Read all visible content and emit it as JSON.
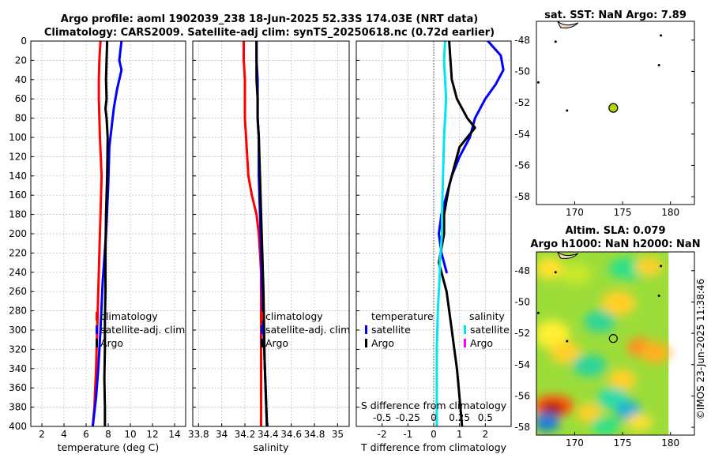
{
  "figure": {
    "title_line1": "Argo profile: aoml 1902039_238 18-Jun-2025 52.33S 174.03E (NRT data)",
    "title_line2": "Climatology: CARS2009. Satellite-adj clim: synTS_20250618.nc (0.72d earlier)",
    "stamp": "©IMOS 23-Jun-2025 11:38:46"
  },
  "colors": {
    "climatology": "#ff0000",
    "satellite_adj": "#0000ff",
    "argo": "#000000",
    "satellite_s": "#00e5ee",
    "satellite_s_legend": "#ff00ff"
  },
  "chart_data": [
    {
      "id": "temperature",
      "type": "line",
      "xlabel": "temperature (deg C)",
      "ylabel": "",
      "xlim": [
        1,
        15
      ],
      "ylim": [
        0,
        400
      ],
      "y_inverted": true,
      "xticks": [
        2,
        4,
        6,
        8,
        10,
        12,
        14
      ],
      "xtick_labels": [
        "2",
        "4",
        "6",
        "8",
        "10",
        "12",
        "14"
      ],
      "yticks": [
        0,
        20,
        40,
        60,
        80,
        100,
        120,
        140,
        160,
        180,
        200,
        220,
        240,
        260,
        280,
        300,
        320,
        340,
        360,
        380,
        400
      ],
      "ytick_labels": [
        "0",
        "20",
        "40",
        "60",
        "80",
        "100",
        "120",
        "140",
        "160",
        "180",
        "200",
        "220",
        "240",
        "260",
        "280",
        "300",
        "320",
        "340",
        "360",
        "380",
        "400"
      ],
      "grid": true,
      "legend": {
        "entries": [
          {
            "label": "climatology",
            "series": "climatology"
          },
          {
            "label": "satellite-adj. clim",
            "series": "satellite_adj"
          },
          {
            "label": "Argo",
            "series": "argo"
          }
        ]
      },
      "series": [
        {
          "name": "climatology",
          "color_key": "climatology",
          "x": [
            7.3,
            7.2,
            7.15,
            7.15,
            7.2,
            7.25,
            7.4,
            7.3,
            7.2,
            7.1,
            7.0,
            6.9,
            6.75,
            6.6
          ],
          "y": [
            0,
            20,
            40,
            60,
            80,
            100,
            140,
            180,
            220,
            260,
            300,
            340,
            380,
            400
          ]
        },
        {
          "name": "satellite_adj",
          "color_key": "satellite_adj",
          "x": [
            9.2,
            9.1,
            9.0,
            9.2,
            8.8,
            8.5,
            8.3,
            8.1,
            8.0,
            7.8,
            7.5,
            7.3,
            7.1,
            6.9,
            6.7,
            6.6
          ],
          "y": [
            0,
            10,
            20,
            30,
            50,
            70,
            90,
            110,
            150,
            200,
            250,
            300,
            340,
            370,
            390,
            400
          ]
        },
        {
          "name": "argo",
          "color_key": "argo",
          "x": [
            7.9,
            7.85,
            7.8,
            7.85,
            7.75,
            7.85,
            7.95,
            7.9,
            7.8,
            7.75,
            7.75,
            7.7,
            7.7,
            7.65,
            7.7,
            7.7
          ],
          "y": [
            0,
            20,
            40,
            60,
            70,
            80,
            100,
            140,
            180,
            220,
            260,
            290,
            320,
            350,
            380,
            400
          ]
        }
      ]
    },
    {
      "id": "salinity",
      "type": "line",
      "xlabel": "salinity",
      "ylabel": "",
      "xlim": [
        33.75,
        35.1
      ],
      "ylim": [
        0,
        400
      ],
      "y_inverted": true,
      "xticks": [
        33.8,
        34,
        34.2,
        34.4,
        34.6,
        34.8,
        35
      ],
      "xtick_labels": [
        "33.8",
        "34",
        "34.2",
        "34.4",
        "34.6",
        "34.8",
        "35"
      ],
      "grid": true,
      "legend": {
        "entries": [
          {
            "label": "climatology",
            "series": "climatology"
          },
          {
            "label": "satellite-adj. clim",
            "series": "satellite_adj"
          },
          {
            "label": "Argo",
            "series": "argo"
          }
        ]
      },
      "series": [
        {
          "name": "climatology",
          "color_key": "climatology",
          "x": [
            34.19,
            34.19,
            34.2,
            34.2,
            34.2,
            34.21,
            34.22,
            34.23,
            34.26,
            34.3,
            34.32,
            34.33,
            34.34,
            34.34,
            34.34,
            34.34
          ],
          "y": [
            0,
            20,
            40,
            60,
            80,
            100,
            120,
            140,
            160,
            180,
            200,
            220,
            240,
            300,
            360,
            400
          ]
        },
        {
          "name": "satellite_adj",
          "color_key": "satellite_adj",
          "x": [
            34.3,
            34.3,
            34.31,
            34.31,
            34.31,
            34.32,
            34.32,
            34.33,
            34.34,
            34.35,
            34.37,
            34.39
          ],
          "y": [
            0,
            20,
            40,
            60,
            80,
            100,
            140,
            180,
            220,
            260,
            330,
            400
          ]
        },
        {
          "name": "argo",
          "color_key": "argo",
          "x": [
            34.3,
            34.3,
            34.3,
            34.31,
            34.31,
            34.32,
            34.33,
            34.34,
            34.35,
            34.36,
            34.37,
            34.39
          ],
          "y": [
            0,
            20,
            40,
            60,
            80,
            100,
            140,
            180,
            220,
            260,
            330,
            400
          ]
        }
      ]
    },
    {
      "id": "difference",
      "type": "line",
      "xlabel": "T difference from climatology",
      "xlabel_top": "S difference from climatology",
      "ylabel": "",
      "xlim": [
        -3,
        3
      ],
      "ylim": [
        0,
        400
      ],
      "y_inverted": true,
      "xticks": [
        -2,
        -1,
        0,
        1,
        2
      ],
      "xtick_labels": [
        "-2",
        "-1",
        "0",
        "1",
        "2"
      ],
      "s_xlim": [
        -0.75,
        0.75
      ],
      "s_xticks": [
        -0.5,
        -0.25,
        0,
        0.25,
        0.5
      ],
      "s_xtick_labels": [
        "-0.5",
        "-0.25",
        "0",
        "0.25",
        "0.5"
      ],
      "grid": true,
      "zero_line": true,
      "legend": {
        "group_temperature_title": "temperature",
        "group_salinity_title": "salinity",
        "entries_temperature": [
          {
            "label": "satellite",
            "series": "t_satellite"
          },
          {
            "label": "Argo",
            "series": "t_argo"
          }
        ],
        "entries_salinity": [
          {
            "label": "satellite",
            "series": "s_satellite"
          },
          {
            "label": "Argo",
            "series": "s_argo"
          }
        ]
      },
      "series": [
        {
          "name": "t_satellite",
          "color_key": "satellite_adj",
          "x": [
            2.1,
            2.6,
            2.7,
            2.4,
            2.0,
            1.6,
            1.4,
            1.0,
            0.7,
            0.5,
            0.3,
            0.2,
            0.3,
            0.5
          ],
          "y": [
            0,
            15,
            30,
            45,
            60,
            80,
            100,
            120,
            140,
            160,
            180,
            200,
            220,
            240
          ]
        },
        {
          "name": "t_argo",
          "color_key": "argo",
          "x": [
            0.6,
            0.65,
            0.7,
            0.9,
            1.3,
            1.6,
            1.3,
            1.0,
            0.8,
            0.6,
            0.4,
            0.4,
            0.2,
            0.5,
            0.6,
            0.7,
            0.8,
            0.9,
            1.0,
            1.1
          ],
          "y": [
            0,
            20,
            40,
            60,
            80,
            90,
            100,
            110,
            130,
            150,
            180,
            200,
            230,
            260,
            280,
            300,
            320,
            340,
            370,
            400
          ]
        },
        {
          "name": "s_satellite",
          "color_key": "satellite_s",
          "x": [
            0.11,
            0.1,
            0.11,
            0.12,
            0.11,
            0.1,
            0.09,
            0.08,
            0.08,
            0.06,
            0.06,
            0.04,
            0.03,
            0.03,
            0.03,
            0.03
          ],
          "y": [
            0,
            20,
            40,
            60,
            80,
            100,
            140,
            180,
            200,
            230,
            240,
            280,
            320,
            350,
            380,
            400
          ]
        }
      ]
    },
    {
      "id": "sst_map",
      "type": "scatter",
      "title": "sat. SST: NaN Argo: 7.89",
      "xlabel": "",
      "ylabel": "",
      "xlim": [
        166,
        182.5
      ],
      "ylim": [
        -58.5,
        -46.8
      ],
      "xticks": [
        170,
        175,
        180
      ],
      "xtick_labels": [
        "170",
        "175",
        "180"
      ],
      "yticks": [
        -48,
        -50,
        -52,
        -54,
        -56,
        -58
      ],
      "ytick_labels": [
        "-48",
        "-50",
        "-52",
        "-54",
        "-56",
        "-58"
      ],
      "argo_position": {
        "lon": 174.03,
        "lat": -52.33,
        "value": 7.89
      },
      "islands": [
        {
          "lon": 166.2,
          "lat": -50.7
        },
        {
          "lon": 169.2,
          "lat": -52.5
        },
        {
          "lon": 178.8,
          "lat": -49.6
        },
        {
          "lon": 179.0,
          "lat": -47.7
        },
        {
          "lon": 168.0,
          "lat": -48.1
        }
      ]
    },
    {
      "id": "sla_map",
      "type": "heatmap",
      "title": "Altim. SLA: 0.079",
      "subtitle": "Argo h1000: NaN h2000: NaN",
      "xlabel": "",
      "ylabel": "",
      "xlim": [
        166,
        182.5
      ],
      "ylim": [
        -58.5,
        -46.8
      ],
      "xticks": [
        170,
        175,
        180
      ],
      "xtick_labels": [
        "170",
        "175",
        "180"
      ],
      "yticks": [
        -48,
        -50,
        -52,
        -54,
        -56,
        -58
      ],
      "ytick_labels": [
        "-48",
        "-50",
        "-52",
        "-54",
        "-56",
        "-58"
      ],
      "argo_position": {
        "lon": 174.03,
        "lat": -52.33,
        "value": 0.079
      },
      "data_lon_max": 179.8
    }
  ]
}
